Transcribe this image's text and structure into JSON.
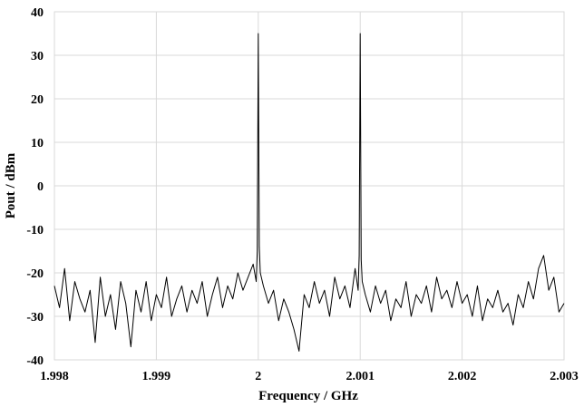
{
  "chart_data": {
    "type": "line",
    "xlabel": "Frequency / GHz",
    "ylabel": "Pout / dBm",
    "xlim": [
      1.998,
      2.003
    ],
    "ylim": [
      -40,
      40
    ],
    "x_ticks": [
      1.998,
      1.999,
      2.0,
      2.001,
      2.002,
      2.003
    ],
    "x_tick_labels": [
      "1.998",
      "1.999",
      "2",
      "2.001",
      "2.002",
      "2.003"
    ],
    "y_ticks": [
      -40,
      -30,
      -20,
      -10,
      0,
      10,
      20,
      30,
      40
    ],
    "y_tick_labels": [
      "-40",
      "-30",
      "-20",
      "-10",
      "0",
      "10",
      "20",
      "30",
      "40"
    ],
    "grid": true,
    "series": [
      {
        "line_color": "#000000",
        "x": [
          1.998,
          1.99805,
          1.9981,
          1.99815,
          1.9982,
          1.99825,
          1.9983,
          1.99835,
          1.9984,
          1.99845,
          1.9985,
          1.99855,
          1.9986,
          1.99865,
          1.9987,
          1.99875,
          1.9988,
          1.99885,
          1.9989,
          1.99895,
          1.999,
          1.99905,
          1.9991,
          1.99915,
          1.9992,
          1.99925,
          1.9993,
          1.99935,
          1.9994,
          1.99945,
          1.9995,
          1.99955,
          1.9996,
          1.99965,
          1.9997,
          1.99975,
          1.9998,
          1.99985,
          1.9999,
          1.99995,
          1.99998,
          1.99999,
          2.0,
          2.00001,
          2.00002,
          2.00005,
          2.0001,
          2.00015,
          2.0002,
          2.00025,
          2.0003,
          2.00035,
          2.0004,
          2.00045,
          2.0005,
          2.00055,
          2.0006,
          2.00065,
          2.0007,
          2.00075,
          2.0008,
          2.00085,
          2.0009,
          2.00095,
          2.00098,
          2.00099,
          2.001,
          2.00101,
          2.00102,
          2.00105,
          2.0011,
          2.00115,
          2.0012,
          2.00125,
          2.0013,
          2.00135,
          2.0014,
          2.00145,
          2.0015,
          2.00155,
          2.0016,
          2.00165,
          2.0017,
          2.00175,
          2.0018,
          2.00185,
          2.0019,
          2.00195,
          2.002,
          2.00205,
          2.0021,
          2.00215,
          2.0022,
          2.00225,
          2.0023,
          2.00235,
          2.0024,
          2.00245,
          2.0025,
          2.00255,
          2.0026,
          2.00265,
          2.0027,
          2.00275,
          2.0028,
          2.00285,
          2.0029,
          2.00295,
          2.003
        ],
        "y": [
          -23,
          -28,
          -19,
          -31,
          -22,
          -26,
          -29,
          -24,
          -36,
          -21,
          -30,
          -25,
          -33,
          -22,
          -27,
          -37,
          -24,
          -29,
          -22,
          -31,
          -25,
          -28,
          -21,
          -30,
          -26,
          -23,
          -29,
          -24,
          -27,
          -22,
          -30,
          -25,
          -21,
          -28,
          -23,
          -26,
          -20,
          -24,
          -21,
          -18,
          -22,
          -15,
          35,
          -14,
          -20,
          -23,
          -27,
          -24,
          -31,
          -26,
          -29,
          -33,
          -38,
          -25,
          -28,
          -22,
          -27,
          -24,
          -30,
          -21,
          -26,
          -23,
          -28,
          -19,
          -24,
          -16,
          35,
          -17,
          -22,
          -25,
          -29,
          -23,
          -27,
          -24,
          -31,
          -26,
          -28,
          -22,
          -30,
          -25,
          -27,
          -23,
          -29,
          -21,
          -26,
          -24,
          -28,
          -22,
          -27,
          -25,
          -30,
          -23,
          -31,
          -26,
          -28,
          -24,
          -29,
          -27,
          -32,
          -25,
          -28,
          -22,
          -26,
          -19,
          -16,
          -24,
          -21,
          -29,
          -27
        ]
      }
    ]
  }
}
